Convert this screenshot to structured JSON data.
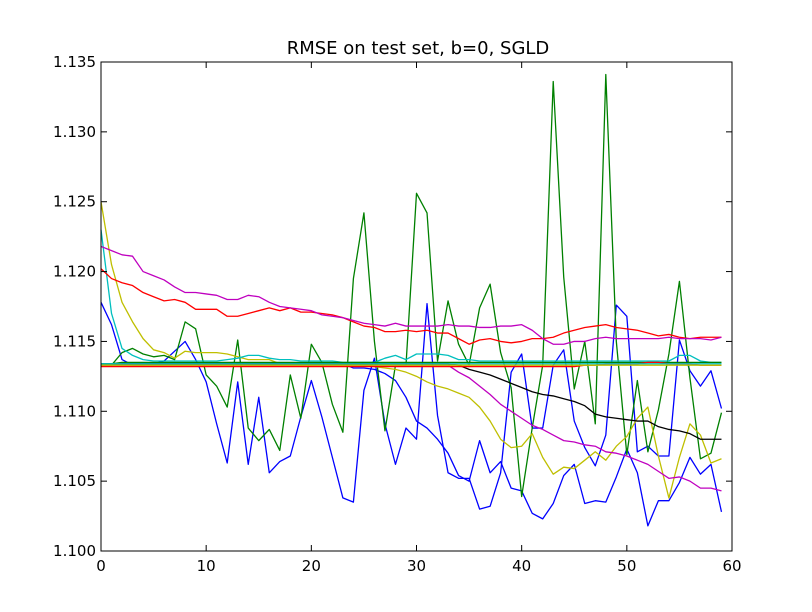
{
  "chart_data": {
    "type": "line",
    "title": "RMSE on test set, b=0, SGLD",
    "xlabel": "",
    "ylabel": "",
    "xlim": [
      0,
      60
    ],
    "ylim": [
      1.1,
      1.135
    ],
    "x_ticks": [
      "0",
      "10",
      "20",
      "30",
      "40",
      "50",
      "60"
    ],
    "y_ticks": [
      "1.100",
      "1.105",
      "1.110",
      "1.115",
      "1.120",
      "1.125",
      "1.130",
      "1.135"
    ],
    "grid": false,
    "legend": "none",
    "x": [
      0,
      1,
      2,
      3,
      4,
      5,
      6,
      7,
      8,
      9,
      10,
      11,
      12,
      13,
      14,
      15,
      16,
      17,
      18,
      19,
      20,
      21,
      22,
      23,
      24,
      25,
      26,
      27,
      28,
      29,
      30,
      31,
      32,
      33,
      34,
      35,
      36,
      37,
      38,
      39,
      40,
      41,
      42,
      43,
      44,
      45,
      46,
      47,
      48,
      49,
      50,
      51,
      52,
      53,
      54,
      55,
      56,
      57,
      58,
      59
    ],
    "series": [
      {
        "color": "#0000ff",
        "values": [
          1.1178,
          1.1162,
          1.1137,
          1.1133,
          1.1133,
          1.1134,
          1.1136,
          1.1143,
          1.115,
          1.1137,
          1.1121,
          1.1091,
          1.1063,
          1.1121,
          1.1062,
          1.111,
          1.1056,
          1.1064,
          1.1068,
          1.1096,
          1.1122,
          1.1096,
          1.1067,
          1.1038,
          1.1035,
          1.1115,
          1.1138,
          1.1091,
          1.1062,
          1.1088,
          1.108,
          1.1177,
          1.1097,
          1.1056,
          1.1052,
          1.1052,
          1.103,
          1.1032,
          1.1056,
          1.1128,
          1.1141,
          1.1088,
          1.1088,
          1.1133,
          1.1144,
          1.1093,
          1.1074,
          1.1061,
          1.1083,
          1.1176,
          1.1168,
          1.1071,
          1.1075,
          1.1068,
          1.1068,
          1.1151,
          1.1129,
          1.1118,
          1.1129,
          1.1102
        ]
      },
      {
        "color": "#0000ff",
        "values": [
          1.1133,
          1.1133,
          1.1134,
          1.1134,
          1.1134,
          1.1134,
          1.1134,
          1.1134,
          1.1134,
          1.1134,
          1.1134,
          1.1134,
          1.1134,
          1.1134,
          1.1134,
          1.1134,
          1.1134,
          1.1134,
          1.1134,
          1.1134,
          1.1134,
          1.1134,
          1.1134,
          1.1134,
          1.1131,
          1.1131,
          1.113,
          1.1127,
          1.1122,
          1.111,
          1.1093,
          1.1088,
          1.108,
          1.107,
          1.1054,
          1.105,
          1.1079,
          1.1056,
          1.1064,
          1.1045,
          1.1043,
          1.1027,
          1.1023,
          1.1034,
          1.1054,
          1.1062,
          1.1034,
          1.1036,
          1.1035,
          1.1053,
          1.1073,
          1.1056,
          1.1018,
          1.1036,
          1.1036,
          1.1049,
          1.1067,
          1.1055,
          1.1062,
          1.1028
        ]
      },
      {
        "color": "#008000",
        "values": [
          1.1133,
          1.1133,
          1.1142,
          1.1145,
          1.1141,
          1.1139,
          1.114,
          1.1137,
          1.1164,
          1.1159,
          1.1126,
          1.1118,
          1.1103,
          1.1151,
          1.1088,
          1.1079,
          1.1087,
          1.1072,
          1.1126,
          1.1095,
          1.1148,
          1.1135,
          1.1105,
          1.1085,
          1.1195,
          1.1242,
          1.115,
          1.1086,
          1.1133,
          1.1133,
          1.1256,
          1.1242,
          1.1136,
          1.1179,
          1.1148,
          1.1133,
          1.1174,
          1.1191,
          1.1142,
          1.1117,
          1.1039,
          1.1088,
          1.1133,
          1.1336,
          1.1196,
          1.1116,
          1.115,
          1.1091,
          1.1341,
          1.115,
          1.1069,
          1.1122,
          1.1071,
          1.1101,
          1.1141,
          1.1193,
          1.1124,
          1.1066,
          1.107,
          1.1099
        ]
      },
      {
        "color": "#bfbf00",
        "values": [
          1.125,
          1.1205,
          1.1178,
          1.1164,
          1.1152,
          1.1144,
          1.1142,
          1.1138,
          1.1143,
          1.1142,
          1.1142,
          1.1142,
          1.1141,
          1.1139,
          1.1137,
          1.1137,
          1.1137,
          1.1134,
          1.1134,
          1.1134,
          1.1134,
          1.1134,
          1.1134,
          1.1134,
          1.1134,
          1.1134,
          1.1132,
          1.1131,
          1.113,
          1.1128,
          1.1125,
          1.1121,
          1.1118,
          1.1116,
          1.1113,
          1.111,
          1.1103,
          1.1093,
          1.108,
          1.1074,
          1.1075,
          1.1084,
          1.1067,
          1.1055,
          1.106,
          1.1059,
          1.1065,
          1.1071,
          1.1065,
          1.1075,
          1.1082,
          1.1095,
          1.1103,
          1.1068,
          1.1038,
          1.1067,
          1.1091,
          1.1083,
          1.1063,
          1.1066
        ]
      },
      {
        "color": "#00bfbf",
        "values": [
          1.123,
          1.117,
          1.1145,
          1.114,
          1.1137,
          1.1136,
          1.1136,
          1.1136,
          1.1136,
          1.1136,
          1.1136,
          1.1136,
          1.1137,
          1.1138,
          1.114,
          1.114,
          1.1138,
          1.1137,
          1.1137,
          1.1136,
          1.1136,
          1.1136,
          1.1136,
          1.1135,
          1.1135,
          1.1135,
          1.1135,
          1.1138,
          1.114,
          1.1137,
          1.1141,
          1.1141,
          1.1141,
          1.114,
          1.1137,
          1.1137,
          1.1136,
          1.1136,
          1.1136,
          1.1136,
          1.1136,
          1.1136,
          1.1136,
          1.1136,
          1.1136,
          1.1136,
          1.1136,
          1.1136,
          1.1136,
          1.1136,
          1.1136,
          1.1136,
          1.1136,
          1.1136,
          1.1136,
          1.114,
          1.114,
          1.1136,
          1.1135,
          1.1135
        ]
      },
      {
        "color": "#ff0000",
        "values": [
          1.1202,
          1.1195,
          1.1192,
          1.119,
          1.1185,
          1.1182,
          1.1179,
          1.118,
          1.1178,
          1.1173,
          1.1173,
          1.1173,
          1.1168,
          1.1168,
          1.117,
          1.1172,
          1.1174,
          1.1172,
          1.1174,
          1.1171,
          1.1171,
          1.117,
          1.1169,
          1.1167,
          1.1164,
          1.1161,
          1.116,
          1.1157,
          1.1157,
          1.1158,
          1.1157,
          1.1158,
          1.1156,
          1.1156,
          1.1152,
          1.1148,
          1.1151,
          1.1152,
          1.115,
          1.1149,
          1.115,
          1.1152,
          1.1152,
          1.1153,
          1.1156,
          1.1158,
          1.116,
          1.1161,
          1.1162,
          1.116,
          1.1159,
          1.1158,
          1.1156,
          1.1154,
          1.1155,
          1.1153,
          1.1152,
          1.1153,
          1.1153,
          1.1153
        ]
      },
      {
        "color": "#bf00bf",
        "values": [
          1.1218,
          1.1215,
          1.1212,
          1.1211,
          1.12,
          1.1197,
          1.1194,
          1.1189,
          1.1185,
          1.1185,
          1.1184,
          1.1183,
          1.118,
          1.118,
          1.1183,
          1.1182,
          1.1178,
          1.1175,
          1.1174,
          1.1173,
          1.1172,
          1.1169,
          1.1168,
          1.1167,
          1.1165,
          1.1163,
          1.1162,
          1.1161,
          1.1163,
          1.1161,
          1.1161,
          1.1161,
          1.1161,
          1.1162,
          1.1161,
          1.1161,
          1.116,
          1.116,
          1.1161,
          1.1161,
          1.1162,
          1.1158,
          1.1152,
          1.1148,
          1.1148,
          1.115,
          1.115,
          1.1152,
          1.1153,
          1.1152,
          1.1152,
          1.1152,
          1.1152,
          1.1152,
          1.1153,
          1.1152,
          1.1152,
          1.1152,
          1.1151,
          1.1153
        ]
      },
      {
        "color": "#bf00bf",
        "values": [
          1.1133,
          1.1133,
          1.1133,
          1.1133,
          1.1133,
          1.1133,
          1.1133,
          1.1133,
          1.1133,
          1.1133,
          1.1133,
          1.1133,
          1.1133,
          1.1133,
          1.1133,
          1.1133,
          1.1133,
          1.1133,
          1.1133,
          1.1133,
          1.1133,
          1.1133,
          1.1133,
          1.1133,
          1.1133,
          1.1133,
          1.1133,
          1.1133,
          1.1133,
          1.1133,
          1.1133,
          1.1133,
          1.1133,
          1.1133,
          1.1128,
          1.1124,
          1.1118,
          1.1112,
          1.1105,
          1.11,
          1.1095,
          1.109,
          1.1087,
          1.1083,
          1.1079,
          1.1078,
          1.1076,
          1.1075,
          1.1071,
          1.107,
          1.1068,
          1.1065,
          1.1062,
          1.1057,
          1.1052,
          1.1053,
          1.105,
          1.1045,
          1.1045,
          1.1043
        ]
      },
      {
        "color": "#000000",
        "values": [
          1.1134,
          1.1134,
          1.1134,
          1.1134,
          1.1134,
          1.1134,
          1.1134,
          1.1134,
          1.1134,
          1.1134,
          1.1134,
          1.1134,
          1.1134,
          1.1134,
          1.1134,
          1.1134,
          1.1134,
          1.1134,
          1.1134,
          1.1134,
          1.1134,
          1.1134,
          1.1134,
          1.1134,
          1.1134,
          1.1134,
          1.1134,
          1.1134,
          1.1134,
          1.1134,
          1.1134,
          1.1134,
          1.1134,
          1.1134,
          1.1133,
          1.113,
          1.1128,
          1.1126,
          1.1123,
          1.112,
          1.1117,
          1.1114,
          1.1112,
          1.1111,
          1.1109,
          1.1107,
          1.1104,
          1.1098,
          1.1096,
          1.1095,
          1.1094,
          1.1093,
          1.1093,
          1.1089,
          1.1087,
          1.1086,
          1.1084,
          1.108,
          1.108,
          1.108
        ]
      },
      {
        "color": "#008000",
        "values": [
          1.1134,
          1.1134,
          1.1135,
          1.1135,
          1.1135,
          1.1135,
          1.1135,
          1.1135,
          1.1135,
          1.1135,
          1.1135,
          1.1135,
          1.1135,
          1.1135,
          1.1135,
          1.1135,
          1.1135,
          1.1135,
          1.1135,
          1.1135,
          1.1135,
          1.1135,
          1.1135,
          1.1135,
          1.1135,
          1.1135,
          1.1135,
          1.1135,
          1.1135,
          1.1135,
          1.1135,
          1.1135,
          1.1135,
          1.1135,
          1.1135,
          1.1135,
          1.1135,
          1.1135,
          1.1135,
          1.1135,
          1.1135,
          1.1135,
          1.1135,
          1.1135,
          1.1135,
          1.1135,
          1.1135,
          1.1135,
          1.1135,
          1.1135,
          1.1135,
          1.1135,
          1.1135,
          1.1135,
          1.1135,
          1.1135,
          1.1135,
          1.1135,
          1.1135,
          1.1135
        ]
      },
      {
        "color": "#ff0000",
        "values": [
          1.1132,
          1.1132,
          1.1132,
          1.1132,
          1.1132,
          1.1132,
          1.1132,
          1.1132,
          1.1132,
          1.1132,
          1.1132,
          1.1132,
          1.1132,
          1.1132,
          1.1132,
          1.1132,
          1.1132,
          1.1132,
          1.1132,
          1.1132,
          1.1132,
          1.1132,
          1.1132,
          1.1132,
          1.1132,
          1.1132,
          1.1132,
          1.1132,
          1.1132,
          1.1132,
          1.1132,
          1.1132,
          1.1132,
          1.1132,
          1.1132,
          1.1132,
          1.1132,
          1.1132,
          1.1132,
          1.1132,
          1.1132,
          1.1132,
          1.1132,
          1.1132,
          1.1132,
          1.1132,
          1.1133,
          1.1133,
          1.1134,
          1.1134,
          1.1134,
          1.1134,
          1.1135,
          1.1135,
          1.1134,
          1.1134,
          1.1134,
          1.1133,
          1.1133,
          1.1133
        ]
      },
      {
        "color": "#bfbf00",
        "values": [
          1.1133,
          1.1133,
          1.1133,
          1.1133,
          1.1133,
          1.1133,
          1.1133,
          1.1133,
          1.1133,
          1.1133,
          1.1133,
          1.1133,
          1.1133,
          1.1133,
          1.1133,
          1.1133,
          1.1133,
          1.1133,
          1.1133,
          1.1133,
          1.1133,
          1.1133,
          1.1133,
          1.1133,
          1.1133,
          1.1133,
          1.1133,
          1.1133,
          1.1133,
          1.1133,
          1.1133,
          1.1133,
          1.1133,
          1.1133,
          1.1133,
          1.1133,
          1.1133,
          1.1133,
          1.1133,
          1.1133,
          1.1133,
          1.1133,
          1.1133,
          1.1133,
          1.1133,
          1.1133,
          1.1133,
          1.1133,
          1.1133,
          1.1133,
          1.1133,
          1.1133,
          1.1133,
          1.1133,
          1.1133,
          1.1133,
          1.1133,
          1.1133,
          1.1133,
          1.1133
        ]
      },
      {
        "color": "#00bfbf",
        "values": [
          1.1134,
          1.1134,
          1.1134,
          1.1134,
          1.1134,
          1.1134,
          1.1134,
          1.1134,
          1.1134,
          1.1134,
          1.1134,
          1.1134,
          1.1134,
          1.1134,
          1.1134,
          1.1134,
          1.1134,
          1.1134,
          1.1134,
          1.1134,
          1.1134,
          1.1134,
          1.1134,
          1.1134,
          1.1134,
          1.1134,
          1.1134,
          1.1134,
          1.1134,
          1.1134,
          1.1134,
          1.1134,
          1.1134,
          1.1134,
          1.1134,
          1.1134,
          1.1134,
          1.1134,
          1.1134,
          1.1134,
          1.1134,
          1.1134,
          1.1134,
          1.1134,
          1.1134,
          1.1134,
          1.1134,
          1.1134,
          1.1134,
          1.1134,
          1.1134,
          1.1134,
          1.1134,
          1.1134,
          1.1134,
          1.1134,
          1.1134,
          1.1134,
          1.1134,
          1.1134
        ]
      }
    ]
  }
}
